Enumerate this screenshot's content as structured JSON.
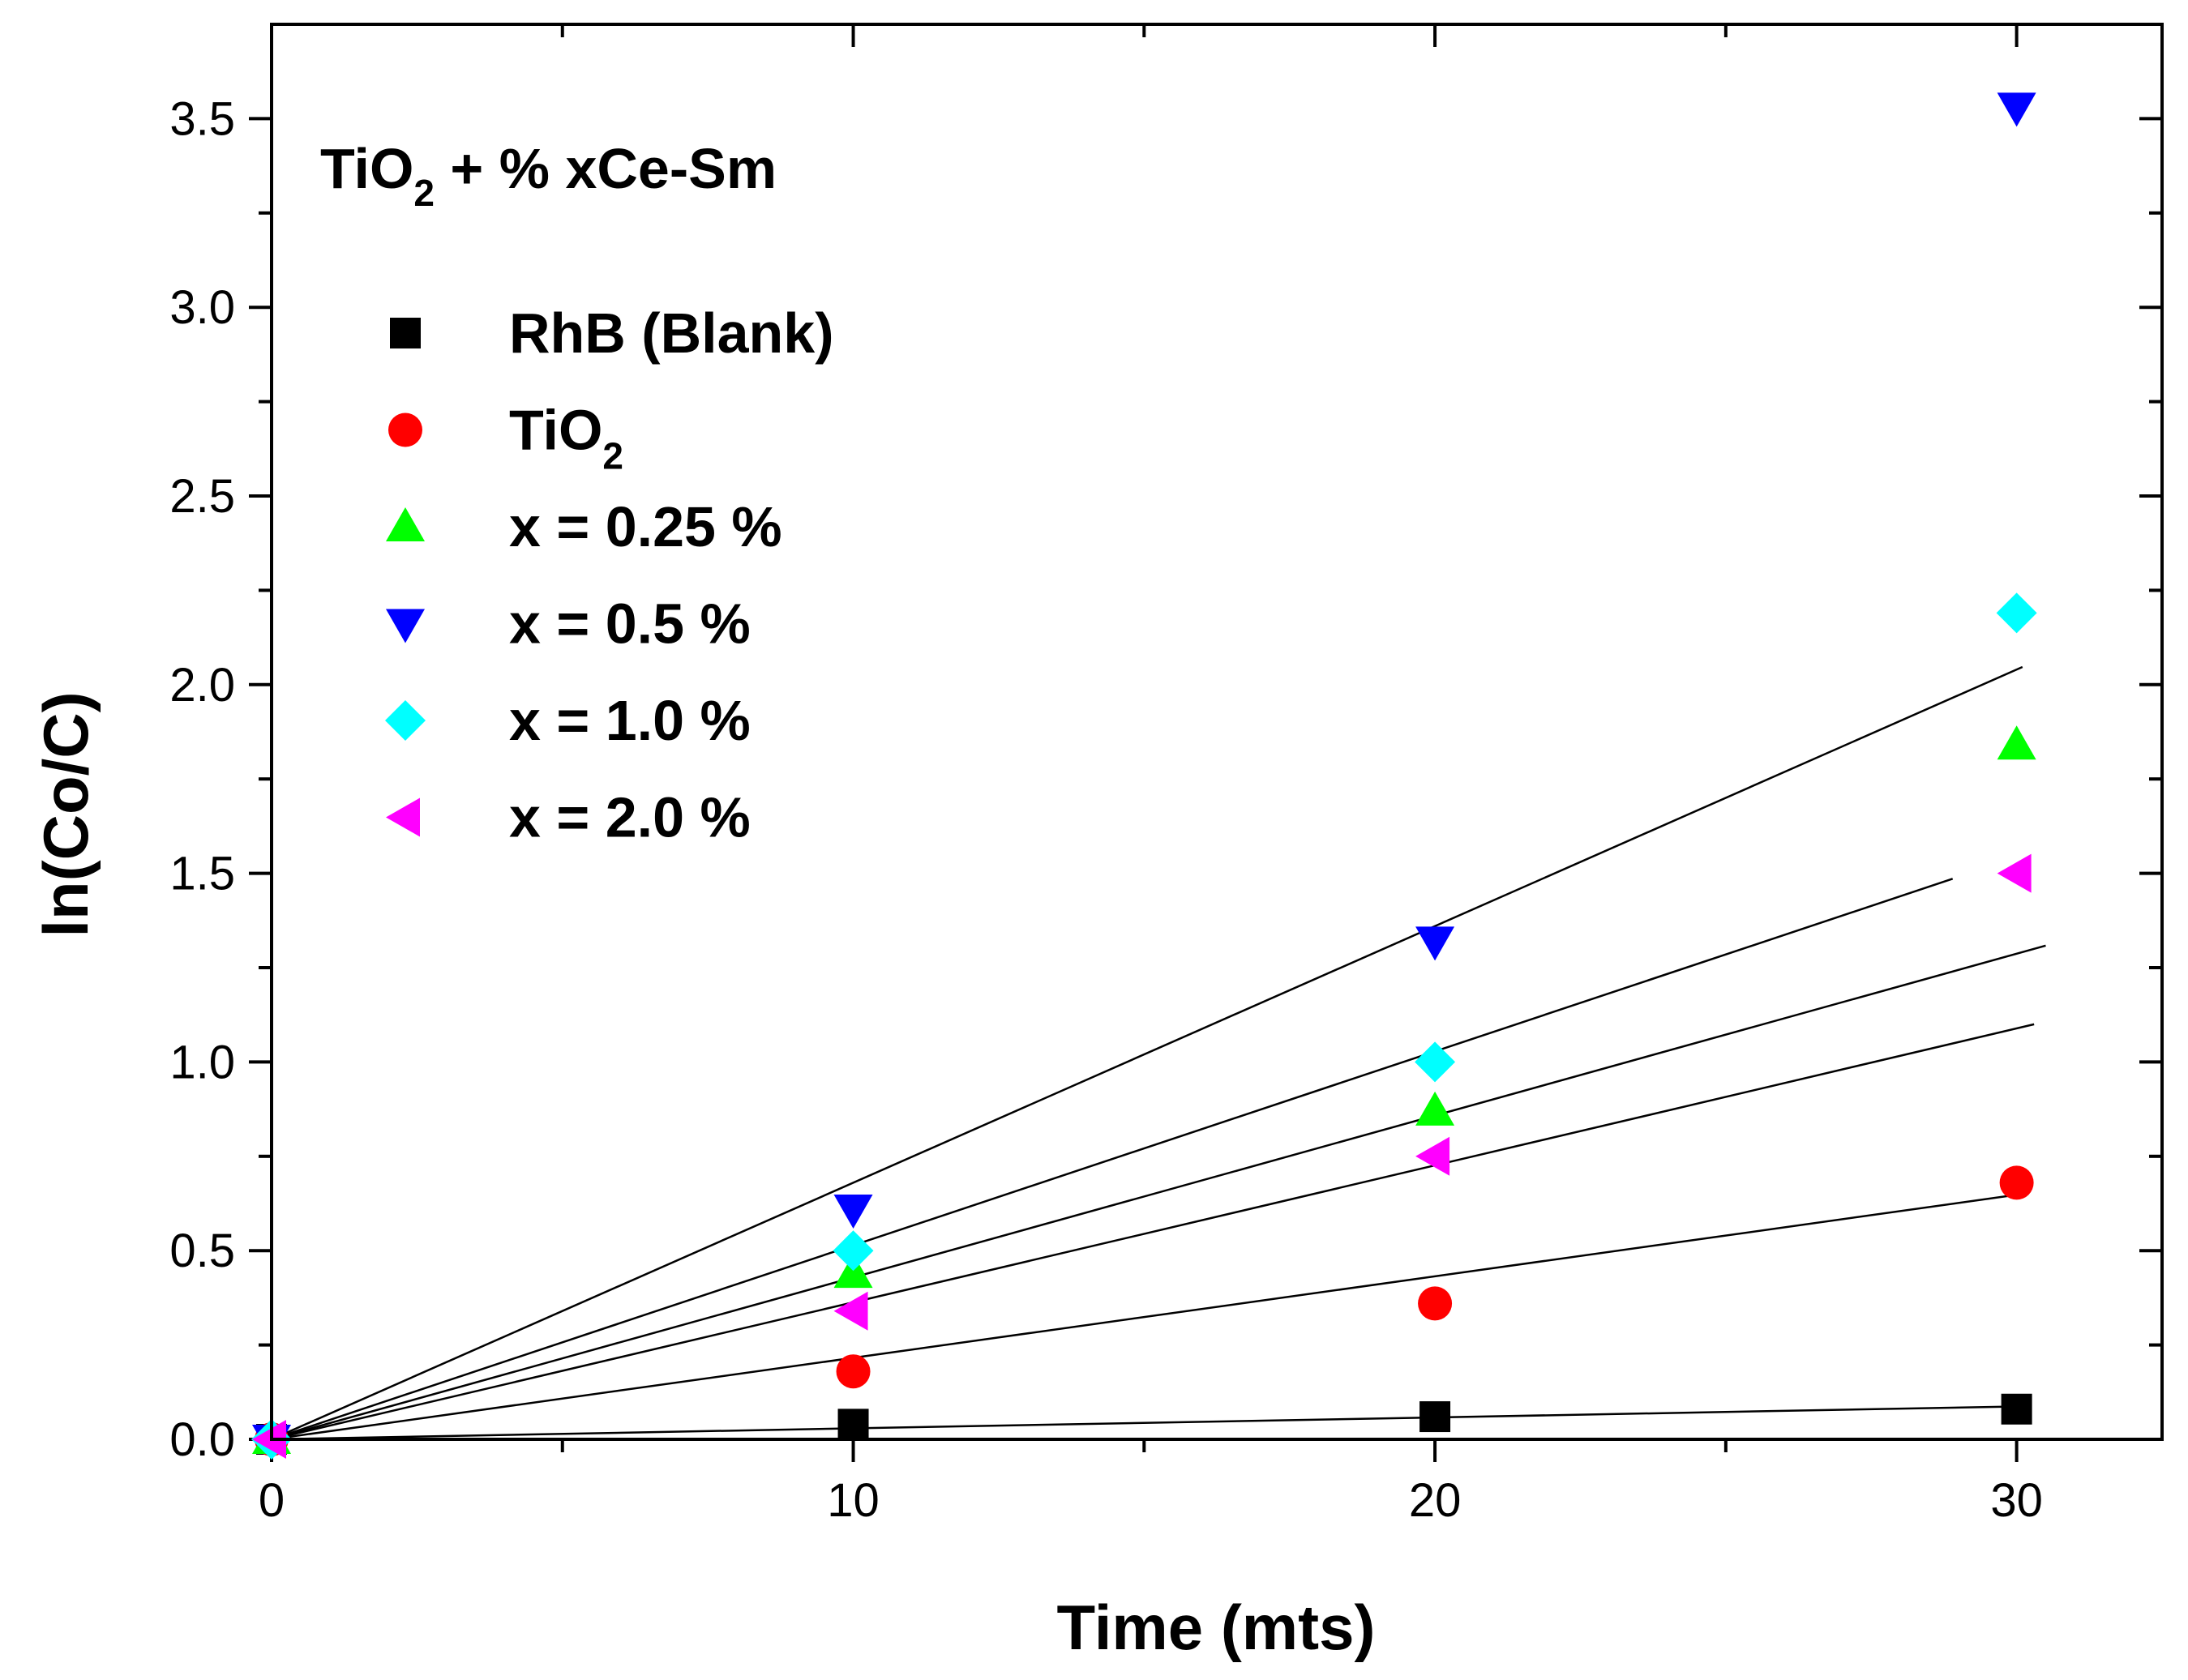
{
  "chart_data": {
    "type": "scatter",
    "title": "",
    "annotation": {
      "main": "TiO",
      "sub": "2",
      "rest": " + % xCe-Sm"
    },
    "xlabel": "Time (mts)",
    "ylabel": "ln(Co/C)",
    "xlim": [
      0,
      32.5
    ],
    "ylim": [
      0,
      3.75
    ],
    "x_major_ticks": [
      0,
      10,
      20,
      30
    ],
    "x_minor_ticks": [
      5,
      15,
      25
    ],
    "y_major_ticks": [
      0.0,
      0.5,
      1.0,
      1.5,
      2.0,
      2.5,
      3.0,
      3.5
    ],
    "y_minor_ticks": [
      0.25,
      0.75,
      1.25,
      1.75,
      2.25,
      2.75,
      3.25
    ],
    "y_tick_labels": [
      "0.0",
      "0.5",
      "1.0",
      "1.5",
      "2.0",
      "2.5",
      "3.0",
      "3.5"
    ],
    "x_tick_labels": [
      "0",
      "10",
      "20",
      "30"
    ],
    "legend_position": "upper-left",
    "series": [
      {
        "name": "RhB (Blank)",
        "name_sub": "",
        "marker": "square",
        "color": "#000000",
        "x": [
          0,
          10,
          20,
          30
        ],
        "y": [
          0.0,
          0.04,
          0.06,
          0.08
        ],
        "fit": {
          "slope": 0.0029,
          "x_end": 30.2
        }
      },
      {
        "name": "TiO",
        "name_sub": "2",
        "marker": "circle",
        "color": "#ff0000",
        "x": [
          0,
          10,
          20,
          30
        ],
        "y": [
          0.0,
          0.18,
          0.36,
          0.68
        ],
        "fit": {
          "slope": 0.0216,
          "x_end": 30.2
        }
      },
      {
        "name": "x = 0.25 %",
        "name_sub": "",
        "marker": "triangle-up",
        "color": "#00ff00",
        "x": [
          0,
          10,
          20,
          30
        ],
        "y": [
          0.0,
          0.44,
          0.87,
          1.84
        ],
        "fit": {
          "slope": 0.0429,
          "x_end": 30.5
        }
      },
      {
        "name": "x = 0.5 %",
        "name_sub": "",
        "marker": "triangle-down",
        "color": "#0000ff",
        "x": [
          0,
          10,
          20,
          30
        ],
        "y": [
          0.0,
          0.61,
          1.32,
          3.53
        ],
        "fit": {
          "slope": 0.068,
          "x_end": 30.1
        }
      },
      {
        "name": "x = 1.0 %",
        "name_sub": "",
        "marker": "diamond",
        "color": "#00ffff",
        "x": [
          0,
          10,
          20,
          30
        ],
        "y": [
          0.0,
          0.5,
          1.0,
          2.19
        ],
        "fit": {
          "slope": 0.0514,
          "x_end": 28.9
        }
      },
      {
        "name": "x = 2.0 %",
        "name_sub": "",
        "marker": "triangle-left",
        "color": "#ff00ff",
        "x": [
          0,
          10,
          20,
          30
        ],
        "y": [
          0.0,
          0.34,
          0.75,
          1.5
        ],
        "fit": {
          "slope": 0.0363,
          "x_end": 30.3
        }
      }
    ]
  }
}
